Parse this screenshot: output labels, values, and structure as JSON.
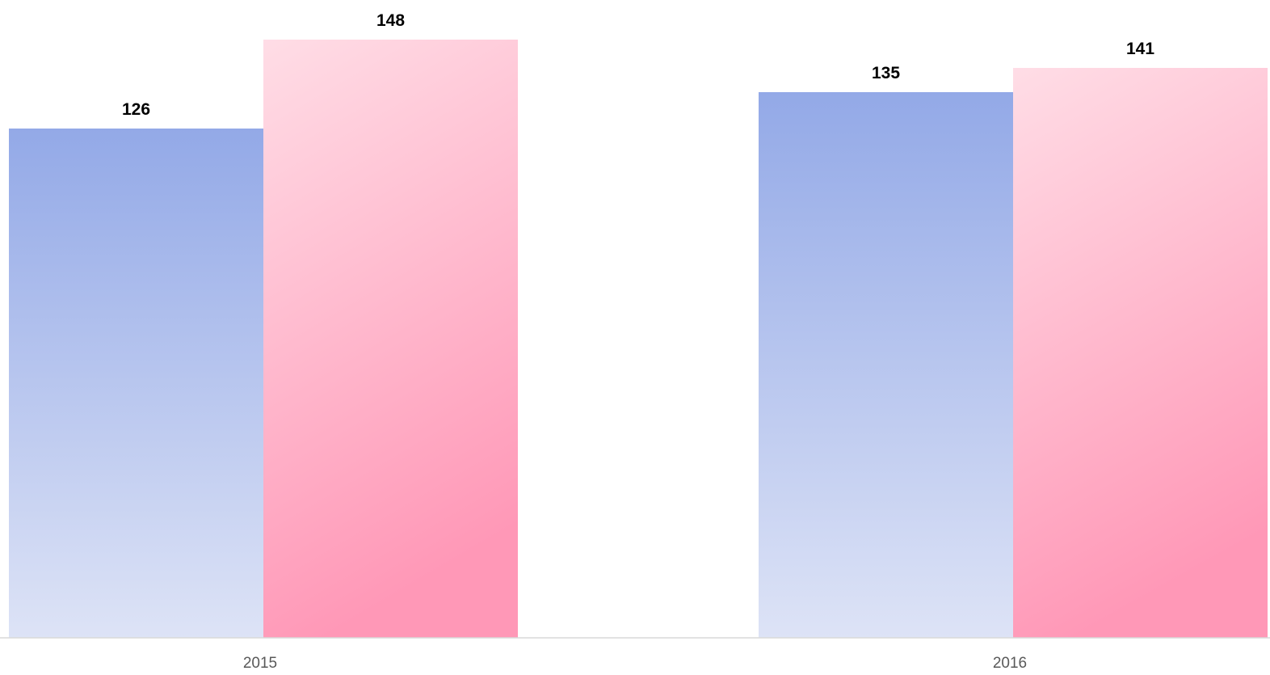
{
  "chart_data": {
    "type": "bar",
    "categories": [
      "2015",
      "2016"
    ],
    "series": [
      {
        "values": [
          126,
          135
        ],
        "color_top": "#93A9E7",
        "color_bottom": "#DDE3F6"
      },
      {
        "values": [
          148,
          141
        ],
        "color_top": "#FFDDE6",
        "color_bottom": "#FF98B7"
      }
    ],
    "data_labels": true,
    "grid": false,
    "legend": "none",
    "axis_color": "#D9D9D9"
  }
}
